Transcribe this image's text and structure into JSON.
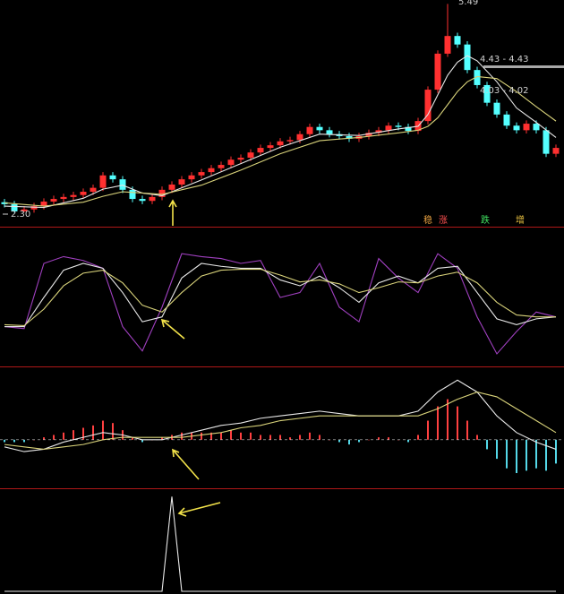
{
  "chart_data": [
    {
      "type": "candlestick",
      "ylim": [
        2.1,
        5.55
      ],
      "up_color": "#ff3030",
      "down_color": "#54ffff",
      "open": [
        2.46,
        2.43,
        2.32,
        2.35,
        2.4,
        2.47,
        2.51,
        2.54,
        2.57,
        2.62,
        2.68,
        2.87,
        2.81,
        2.65,
        2.51,
        2.48,
        2.54,
        2.65,
        2.73,
        2.81,
        2.87,
        2.92,
        2.98,
        3.03,
        3.11,
        3.14,
        3.22,
        3.29,
        3.33,
        3.39,
        3.41,
        3.5,
        3.61,
        3.56,
        3.5,
        3.47,
        3.43,
        3.47,
        3.52,
        3.56,
        3.63,
        3.61,
        3.55,
        3.7,
        4.18,
        4.73,
        5.0,
        4.87,
        4.48,
        4.25,
        3.98,
        3.8,
        3.63,
        3.56,
        3.66,
        3.56,
        3.2
      ],
      "high": [
        2.51,
        2.48,
        2.4,
        2.45,
        2.52,
        2.56,
        2.59,
        2.62,
        2.67,
        2.73,
        2.92,
        2.92,
        2.86,
        2.7,
        2.56,
        2.59,
        2.7,
        2.78,
        2.86,
        2.92,
        2.97,
        3.03,
        3.08,
        3.16,
        3.19,
        3.27,
        3.34,
        3.38,
        3.44,
        3.46,
        3.55,
        3.66,
        3.66,
        3.61,
        3.55,
        3.52,
        3.52,
        3.57,
        3.61,
        3.68,
        3.68,
        3.66,
        3.75,
        4.23,
        4.78,
        5.49,
        5.05,
        4.92,
        4.53,
        4.3,
        4.03,
        3.85,
        3.68,
        3.71,
        3.71,
        3.61,
        3.34
      ],
      "low": [
        2.38,
        2.3,
        2.31,
        2.3,
        2.35,
        2.42,
        2.46,
        2.49,
        2.52,
        2.57,
        2.63,
        2.76,
        2.6,
        2.46,
        2.43,
        2.43,
        2.49,
        2.6,
        2.68,
        2.76,
        2.82,
        2.87,
        2.93,
        2.98,
        3.06,
        3.09,
        3.17,
        3.24,
        3.28,
        3.34,
        3.36,
        3.45,
        3.51,
        3.45,
        3.42,
        3.38,
        3.38,
        3.42,
        3.47,
        3.51,
        3.56,
        3.5,
        3.5,
        3.65,
        4.13,
        4.68,
        4.82,
        4.43,
        4.2,
        3.93,
        3.75,
        3.58,
        3.51,
        3.51,
        3.51,
        3.15,
        3.15
      ],
      "close": [
        2.43,
        2.32,
        2.35,
        2.4,
        2.47,
        2.51,
        2.54,
        2.57,
        2.62,
        2.68,
        2.87,
        2.81,
        2.65,
        2.51,
        2.48,
        2.54,
        2.65,
        2.73,
        2.81,
        2.87,
        2.92,
        2.98,
        3.03,
        3.11,
        3.14,
        3.22,
        3.29,
        3.33,
        3.39,
        3.41,
        3.5,
        3.61,
        3.56,
        3.5,
        3.47,
        3.43,
        3.47,
        3.52,
        3.56,
        3.63,
        3.61,
        3.55,
        3.7,
        4.18,
        4.73,
        5.0,
        4.87,
        4.48,
        4.25,
        3.98,
        3.8,
        3.63,
        3.56,
        3.66,
        3.56,
        3.2,
        3.29
      ],
      "series": [
        {
          "color": "#e8e8e8",
          "x": [
            0,
            4,
            8,
            10,
            12,
            14,
            16,
            20,
            24,
            28,
            32,
            36,
            40,
            42,
            43,
            44,
            45,
            46,
            47,
            48,
            50,
            52,
            54,
            56
          ],
          "values": [
            2.4,
            2.38,
            2.52,
            2.66,
            2.72,
            2.6,
            2.56,
            2.8,
            3.05,
            3.3,
            3.5,
            3.48,
            3.58,
            3.62,
            3.8,
            4.1,
            4.4,
            4.6,
            4.7,
            4.62,
            4.3,
            3.9,
            3.68,
            3.45
          ]
        },
        {
          "color": "#d8d27a",
          "x": [
            0,
            4,
            8,
            10,
            12,
            14,
            16,
            20,
            24,
            28,
            32,
            36,
            40,
            42,
            43,
            44,
            45,
            46,
            47,
            48,
            50,
            52,
            54,
            56
          ],
          "values": [
            2.45,
            2.4,
            2.46,
            2.55,
            2.62,
            2.6,
            2.58,
            2.72,
            2.95,
            3.2,
            3.4,
            3.45,
            3.52,
            3.56,
            3.62,
            3.75,
            3.95,
            4.15,
            4.3,
            4.38,
            4.35,
            4.15,
            3.92,
            3.7
          ]
        }
      ],
      "annotations": [
        {
          "text": "5.49",
          "color": "#cfcfcf"
        },
        {
          "text": "4.43 - 4.43",
          "color": "#cfcfcf"
        },
        {
          "text": "4.03 - 4.02",
          "color": "#cfcfcf"
        },
        {
          "text": "2.30",
          "color": "#cfcfcf"
        },
        {
          "text": "稳",
          "color": "#e8a040"
        },
        {
          "text": "涨",
          "color": "#ff5050"
        },
        {
          "text": "跌",
          "color": "#40e060"
        },
        {
          "text": "增",
          "color": "#e8c040"
        }
      ]
    },
    {
      "type": "line",
      "ylim": [
        -20,
        120
      ],
      "series": [
        {
          "color": "#a040c0",
          "x": [
            0,
            2,
            4,
            6,
            8,
            10,
            12,
            14,
            16,
            18,
            20,
            22,
            24,
            26,
            28,
            30,
            32,
            34,
            36,
            38,
            40,
            42,
            44,
            46,
            48,
            50,
            52,
            54,
            56
          ],
          "values": [
            20,
            18,
            85,
            92,
            88,
            80,
            20,
            -5,
            40,
            95,
            92,
            90,
            85,
            88,
            50,
            55,
            85,
            40,
            25,
            90,
            70,
            55,
            95,
            80,
            30,
            -8,
            15,
            35,
            30
          ]
        },
        {
          "color": "#e8e8e8",
          "x": [
            0,
            2,
            4,
            6,
            8,
            10,
            12,
            14,
            16,
            18,
            20,
            22,
            24,
            26,
            28,
            30,
            32,
            34,
            36,
            38,
            40,
            42,
            44,
            46,
            48,
            50,
            52,
            54,
            56
          ],
          "values": [
            20,
            20,
            50,
            78,
            85,
            80,
            55,
            25,
            30,
            70,
            85,
            82,
            80,
            80,
            68,
            62,
            72,
            60,
            45,
            65,
            72,
            65,
            80,
            82,
            55,
            28,
            22,
            28,
            30
          ]
        },
        {
          "color": "#d8d27a",
          "x": [
            0,
            2,
            4,
            6,
            8,
            10,
            12,
            14,
            16,
            18,
            20,
            22,
            24,
            26,
            28,
            30,
            32,
            34,
            36,
            38,
            40,
            42,
            44,
            46,
            48,
            50,
            52,
            54,
            56
          ],
          "values": [
            22,
            21,
            38,
            62,
            75,
            78,
            65,
            42,
            35,
            55,
            72,
            78,
            79,
            79,
            73,
            66,
            68,
            64,
            55,
            60,
            66,
            65,
            72,
            76,
            65,
            45,
            32,
            30,
            30
          ]
        }
      ]
    },
    {
      "type": "bar",
      "ylim": [
        -0.2,
        0.3
      ],
      "up_color": "#ff4040",
      "down_color": "#54d8e8",
      "zero_color": "#c8c8c8",
      "values": [
        -0.01,
        -0.01,
        -0.01,
        0,
        0.01,
        0.02,
        0.03,
        0.04,
        0.05,
        0.06,
        0.08,
        0.07,
        0.04,
        0.01,
        -0.01,
        0,
        0.01,
        0.02,
        0.03,
        0.03,
        0.03,
        0.03,
        0.03,
        0.04,
        0.03,
        0.03,
        0.02,
        0.02,
        0.02,
        0.01,
        0.02,
        0.03,
        0.02,
        0,
        -0.01,
        -0.02,
        -0.01,
        0,
        0.01,
        0.01,
        0,
        -0.01,
        0.02,
        0.08,
        0.14,
        0.17,
        0.14,
        0.08,
        0.02,
        -0.04,
        -0.08,
        -0.12,
        -0.14,
        -0.13,
        -0.12,
        -0.13,
        -0.1
      ],
      "series": [
        {
          "color": "#e8e8e8",
          "x": [
            0,
            2,
            4,
            6,
            8,
            10,
            12,
            14,
            16,
            18,
            20,
            22,
            24,
            26,
            28,
            30,
            32,
            34,
            36,
            38,
            40,
            42,
            44,
            46,
            48,
            50,
            52,
            54,
            56
          ],
          "values": [
            -0.03,
            -0.05,
            -0.04,
            -0.01,
            0.01,
            0.03,
            0.02,
            0,
            0,
            0.02,
            0.04,
            0.06,
            0.07,
            0.09,
            0.1,
            0.11,
            0.12,
            0.11,
            0.1,
            0.1,
            0.1,
            0.12,
            0.2,
            0.25,
            0.2,
            0.1,
            0.03,
            -0.01,
            -0.04
          ]
        },
        {
          "color": "#d8d27a",
          "x": [
            0,
            2,
            4,
            6,
            8,
            10,
            12,
            14,
            16,
            18,
            20,
            22,
            24,
            26,
            28,
            30,
            32,
            34,
            36,
            38,
            40,
            42,
            44,
            46,
            48,
            50,
            52,
            54,
            56
          ],
          "values": [
            -0.02,
            -0.03,
            -0.04,
            -0.03,
            -0.02,
            0,
            0.01,
            0.01,
            0.01,
            0.01,
            0.02,
            0.03,
            0.05,
            0.06,
            0.08,
            0.09,
            0.1,
            0.1,
            0.1,
            0.1,
            0.1,
            0.1,
            0.13,
            0.17,
            0.2,
            0.18,
            0.13,
            0.08,
            0.03
          ]
        }
      ]
    },
    {
      "type": "line",
      "ylim": [
        0,
        1.05
      ],
      "series": [
        {
          "color": "#e8e8e8",
          "values": [
            0,
            0,
            0,
            0,
            0,
            0,
            0,
            0,
            0,
            0,
            0,
            0,
            0,
            0,
            0,
            0,
            0,
            1,
            0,
            0,
            0,
            0,
            0,
            0,
            0,
            0,
            0,
            0,
            0,
            0,
            0,
            0,
            0,
            0,
            0,
            0,
            0,
            0,
            0,
            0,
            0,
            0,
            0,
            0,
            0,
            0,
            0,
            0,
            0,
            0,
            0,
            0,
            0,
            0,
            0,
            0,
            0
          ]
        }
      ]
    }
  ]
}
